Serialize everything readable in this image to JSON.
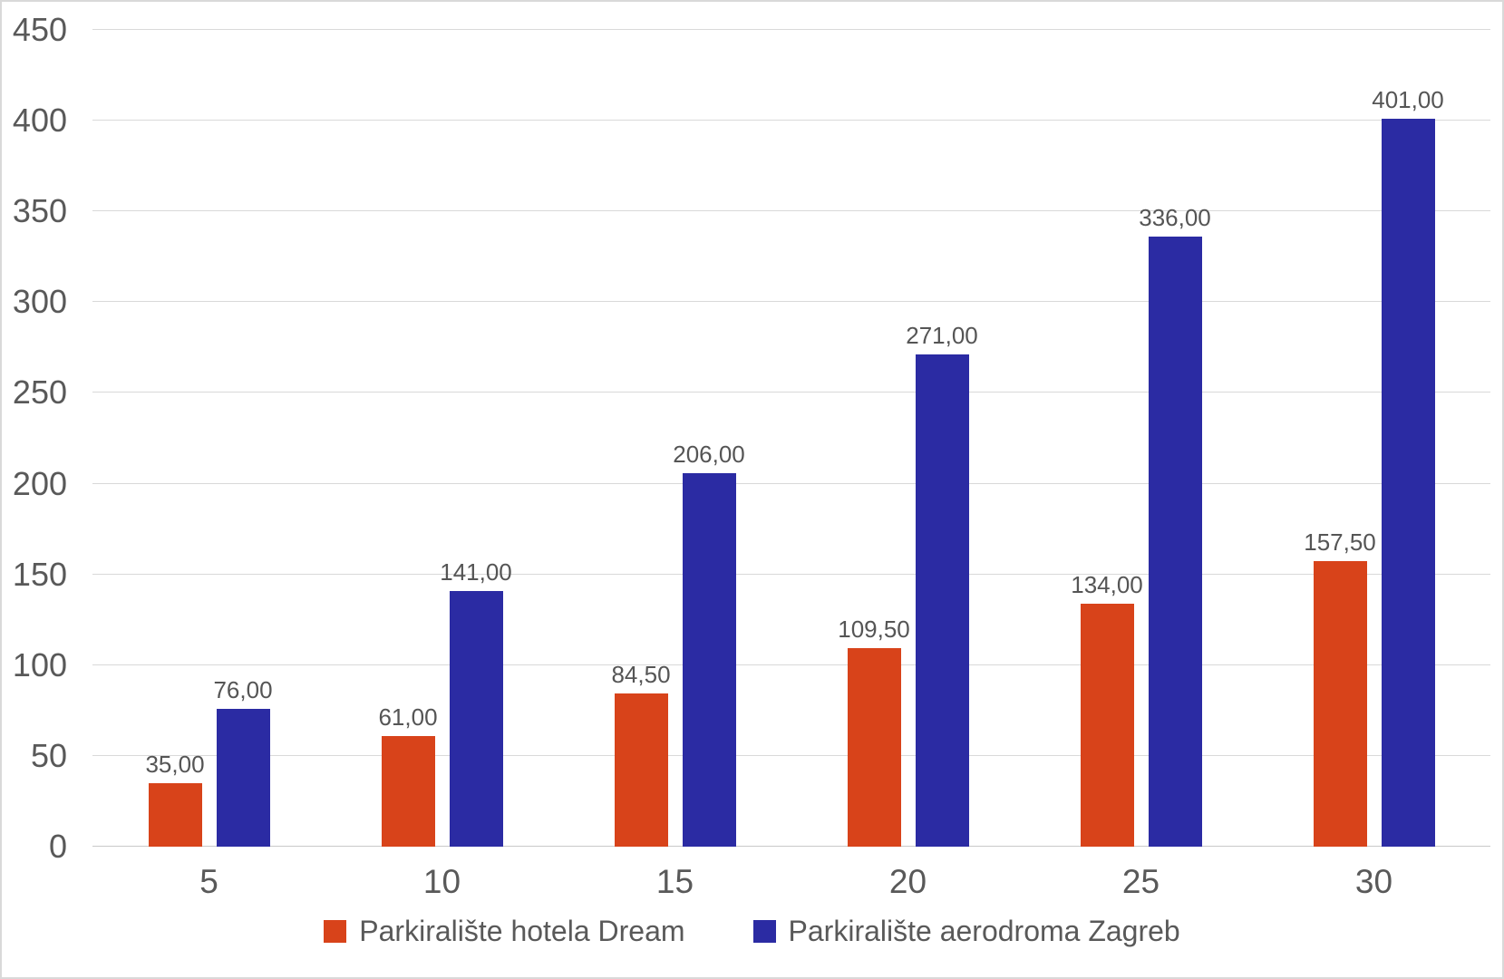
{
  "chart_data": {
    "type": "bar",
    "title": "",
    "xlabel": "",
    "ylabel": "",
    "categories": [
      "5",
      "10",
      "15",
      "20",
      "25",
      "30"
    ],
    "series": [
      {
        "name": "Parkiralište hotela Dream",
        "color": "#D8431A",
        "values": [
          35,
          61,
          84.5,
          109.5,
          134,
          157.5
        ],
        "labels": [
          "35,00",
          "61,00",
          "84,50",
          "109,50",
          "134,00",
          "157,50"
        ]
      },
      {
        "name": "Parkiralište aerodroma Zagreb",
        "color": "#2B2BA3",
        "values": [
          76,
          141,
          206,
          271,
          336,
          401
        ],
        "labels": [
          "76,00",
          "141,00",
          "206,00",
          "271,00",
          "336,00",
          "401,00"
        ]
      }
    ],
    "ylim": [
      0,
      450
    ],
    "yticks": [
      0,
      50,
      100,
      150,
      200,
      250,
      300,
      350,
      400,
      450
    ],
    "ytick_labels": [
      "0",
      "50",
      "100",
      "150",
      "200",
      "250",
      "300",
      "350",
      "400",
      "450"
    ],
    "grid": "horizontal",
    "legend_position": "bottom",
    "colors": {
      "background": "#FFFFFF",
      "border": "#D9D9D9",
      "gridline": "#D9D9D9",
      "axis_text": "#595959",
      "data_label_text": "#555555"
    }
  }
}
